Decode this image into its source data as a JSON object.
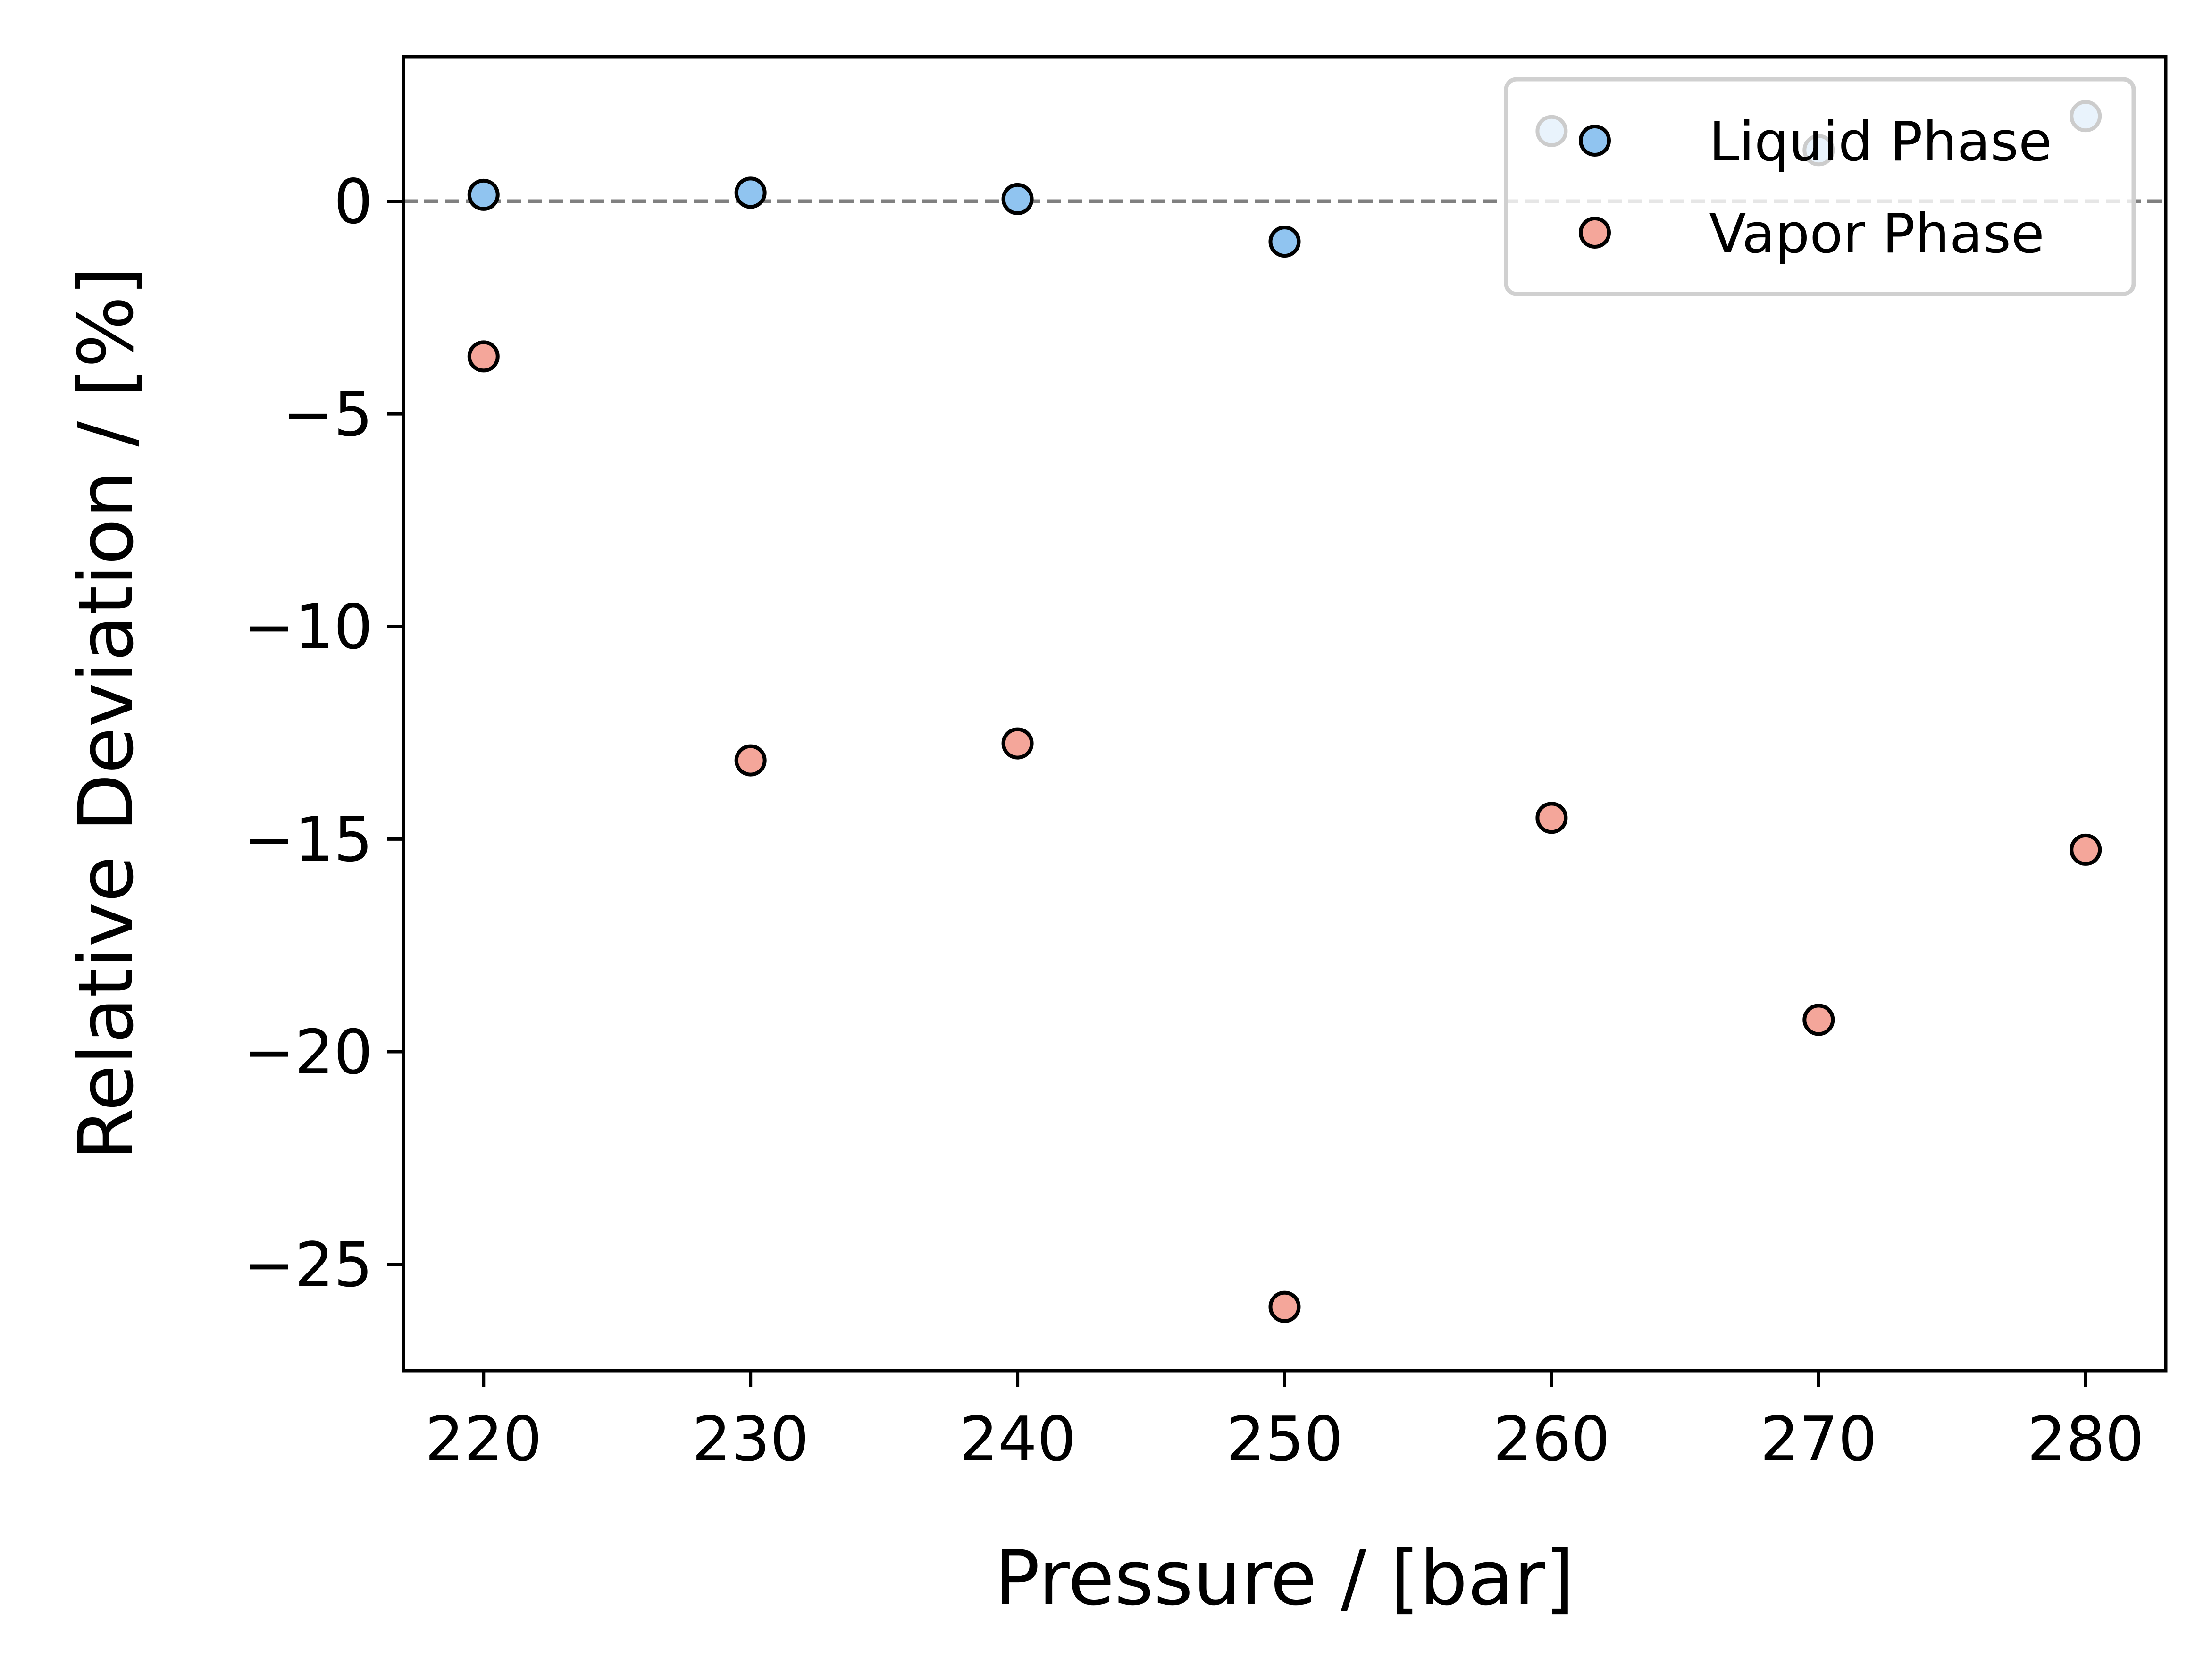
{
  "chart_data": {
    "type": "scatter",
    "title": "",
    "xlabel": "Pressure / [bar]",
    "ylabel": "Relative Deviation / [%]",
    "xlim": [
      217,
      283
    ],
    "ylim": [
      -27.5,
      3.4
    ],
    "xticks": [
      220,
      230,
      240,
      250,
      260,
      270,
      280
    ],
    "yticks": [
      0,
      -5,
      -10,
      -15,
      -20,
      -25
    ],
    "xtick_labels": [
      "220",
      "230",
      "240",
      "250",
      "260",
      "270",
      "280"
    ],
    "ytick_labels": [
      "0",
      "−5",
      "−10",
      "−15",
      "−20",
      "−25"
    ],
    "reference_line": {
      "y": 0,
      "style": "dashed",
      "color": "#808080"
    },
    "grid": false,
    "legend_position": "top-right",
    "series": [
      {
        "name": "Liquid Phase",
        "color": "#90c4f0",
        "edge_color": "#000000",
        "x": [
          220,
          230,
          240,
          250,
          260,
          270,
          280
        ],
        "y": [
          0.15,
          0.2,
          0.05,
          -0.95,
          1.65,
          1.2,
          2.0
        ]
      },
      {
        "name": "Vapor Phase",
        "color": "#f4a69a",
        "edge_color": "#000000",
        "x": [
          220,
          230,
          240,
          250,
          260,
          270,
          280
        ],
        "y": [
          -3.65,
          -13.15,
          -12.75,
          -26.0,
          -14.5,
          -19.25,
          -15.25
        ]
      }
    ]
  }
}
